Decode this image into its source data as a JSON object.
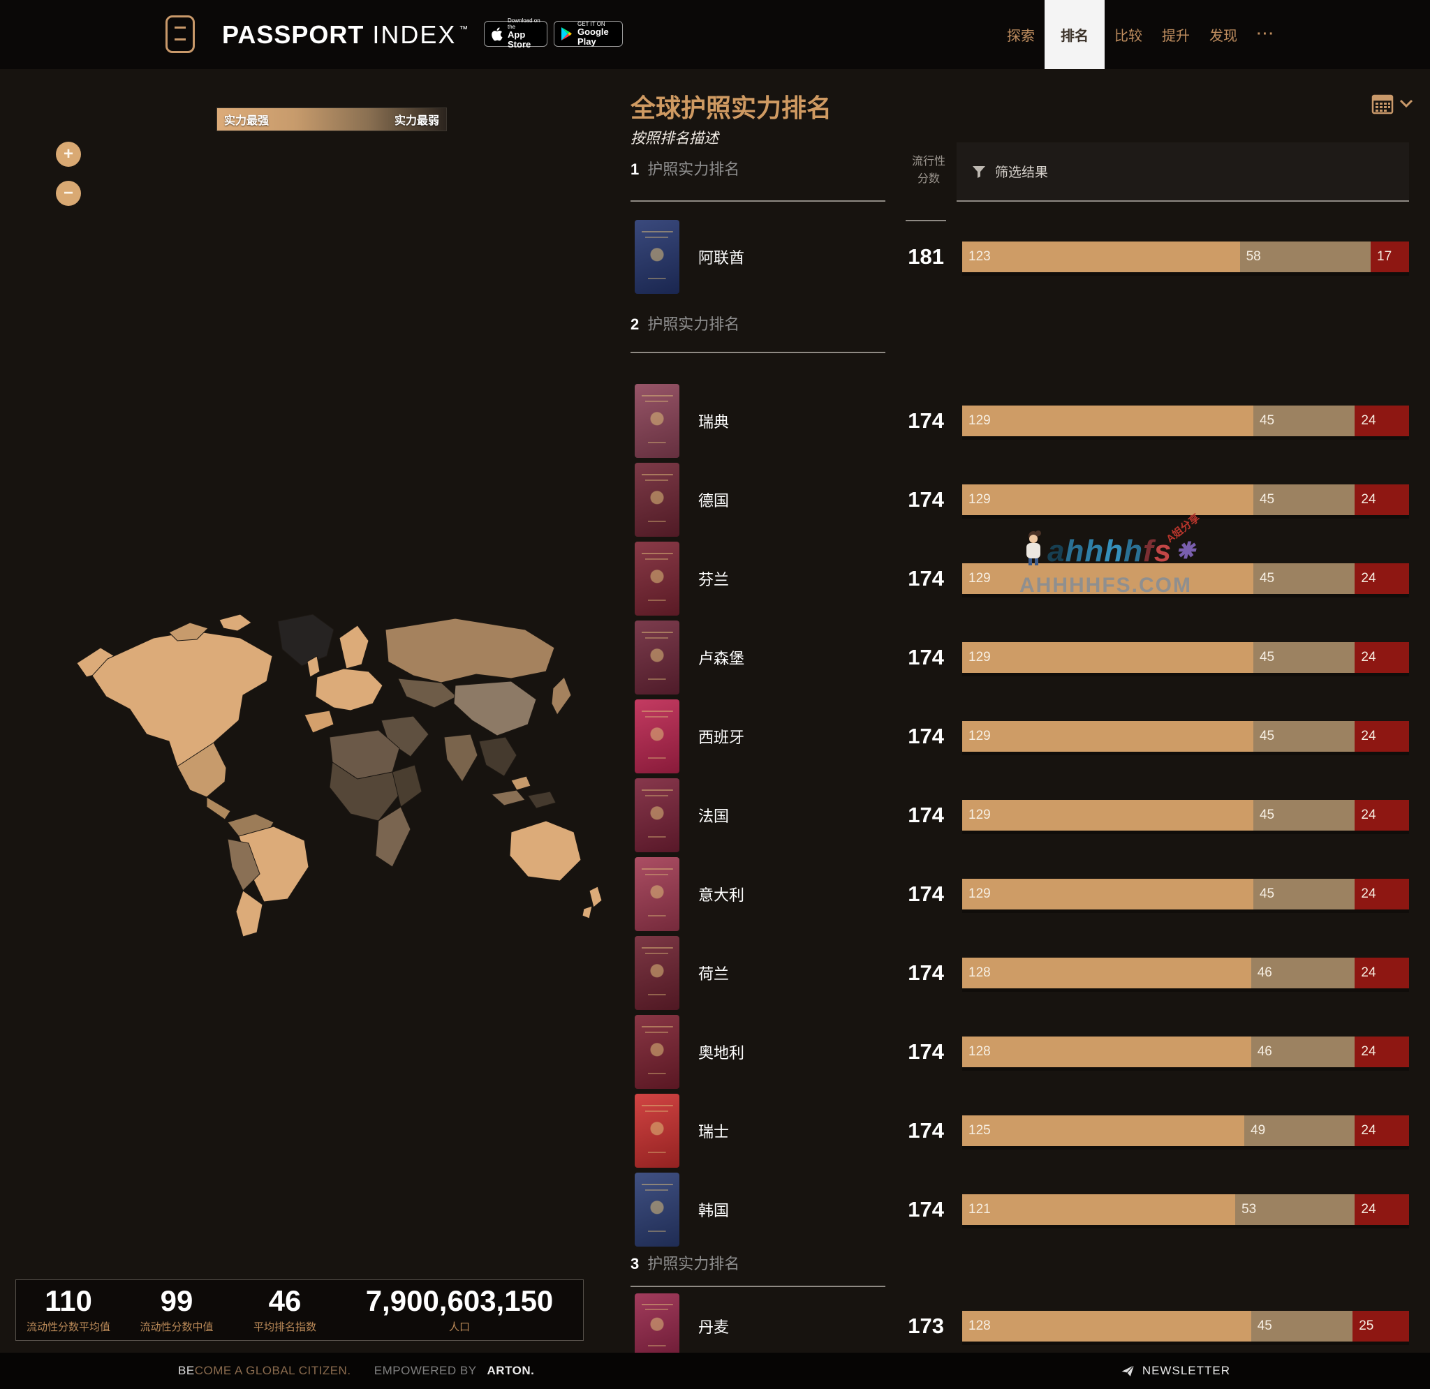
{
  "header": {
    "brand_bold": "PASSPORT",
    "brand_light": "INDEX",
    "tm": "™",
    "appstore": {
      "top": "Download on the",
      "bottom": "App Store"
    },
    "googleplay": {
      "top": "GET IT ON",
      "bottom": "Google Play"
    },
    "nav": [
      {
        "label": "探索",
        "active": false
      },
      {
        "label": "排名",
        "active": true
      },
      {
        "label": "比较",
        "active": false
      },
      {
        "label": "提升",
        "active": false
      },
      {
        "label": "发现",
        "active": false
      },
      {
        "label": "···",
        "active": false,
        "dots": true
      }
    ]
  },
  "map": {
    "legend_left": "实力最强",
    "legend_right": "实力最弱",
    "zoom_in": "+",
    "zoom_out": "−"
  },
  "panel": {
    "title": "全球护照实力排名",
    "subtitle": "按照排名描述",
    "score_header_line1": "流行性",
    "score_header_line2": "分数",
    "filter_label": "筛选结果"
  },
  "bar_colors": [
    "#ce9c66",
    "#9c8261",
    "#8e1712"
  ],
  "sections": [
    {
      "rank": "1",
      "label": "护照实力排名",
      "rows": [
        {
          "country": "阿联酋",
          "score": "181",
          "segments": [
            123,
            58,
            17
          ],
          "passport_color": "#24356e"
        }
      ]
    },
    {
      "rank": "2",
      "label": "护照实力排名",
      "rows": [
        {
          "country": "瑞典",
          "score": "174",
          "segments": [
            129,
            45,
            24
          ],
          "passport_color": "#8c4257"
        },
        {
          "country": "德国",
          "score": "174",
          "segments": [
            129,
            45,
            24
          ],
          "passport_color": "#6e2433"
        },
        {
          "country": "芬兰",
          "score": "174",
          "segments": [
            129,
            45,
            24
          ],
          "passport_color": "#7c2433"
        },
        {
          "country": "卢森堡",
          "score": "174",
          "segments": [
            129,
            45,
            24
          ],
          "passport_color": "#6d2639"
        },
        {
          "country": "西班牙",
          "score": "174",
          "segments": [
            129,
            45,
            24
          ],
          "passport_color": "#bd2550"
        },
        {
          "country": "法国",
          "score": "174",
          "segments": [
            129,
            45,
            24
          ],
          "passport_color": "#7a2138"
        },
        {
          "country": "意大利",
          "score": "174",
          "segments": [
            129,
            45,
            24
          ],
          "passport_color": "#a23a52"
        },
        {
          "country": "荷兰",
          "score": "174",
          "segments": [
            128,
            46,
            24
          ],
          "passport_color": "#6e2130"
        },
        {
          "country": "奥地利",
          "score": "174",
          "segments": [
            128,
            46,
            24
          ],
          "passport_color": "#7c2030"
        },
        {
          "country": "瑞士",
          "score": "174",
          "segments": [
            125,
            49,
            24
          ],
          "passport_color": "#cc2f2e"
        },
        {
          "country": "韩国",
          "score": "174",
          "segments": [
            121,
            53,
            24
          ],
          "passport_color": "#2b3d74"
        }
      ]
    },
    {
      "rank": "3",
      "label": "护照实力排名",
      "rows": [
        {
          "country": "丹麦",
          "score": "173",
          "segments": [
            128,
            45,
            25
          ],
          "passport_color": "#97264a"
        }
      ]
    }
  ],
  "stats": [
    {
      "value": "110",
      "label": "流动性分数平均值"
    },
    {
      "value": "99",
      "label": "流动性分数中值"
    },
    {
      "value": "46",
      "label": "平均排名指数"
    },
    {
      "value": "7,900,603,150",
      "label": "人口"
    }
  ],
  "footer": {
    "become_prefix": "BE",
    "become_rest": "COME A GLOBAL CITIZEN.",
    "empowered": "EMPOWERED BY",
    "arton": "ARTON.",
    "newsletter": "NEWSLETTER"
  },
  "watermark": {
    "letters": [
      {
        "ch": "a",
        "color": "#173f52"
      },
      {
        "ch": "h",
        "color": "#2a7195"
      },
      {
        "ch": "h",
        "color": "#2f80a8"
      },
      {
        "ch": "h",
        "color": "#3590bc"
      },
      {
        "ch": "h",
        "color": "#2a7195"
      },
      {
        "ch": "f",
        "color": "#7c2f33"
      },
      {
        "ch": "s",
        "color": "#c24646"
      },
      {
        "ch": "⁕",
        "color": "#7a5fae"
      }
    ],
    "tag": "A姐分享",
    "domain": "AHHHHFS.COM"
  }
}
